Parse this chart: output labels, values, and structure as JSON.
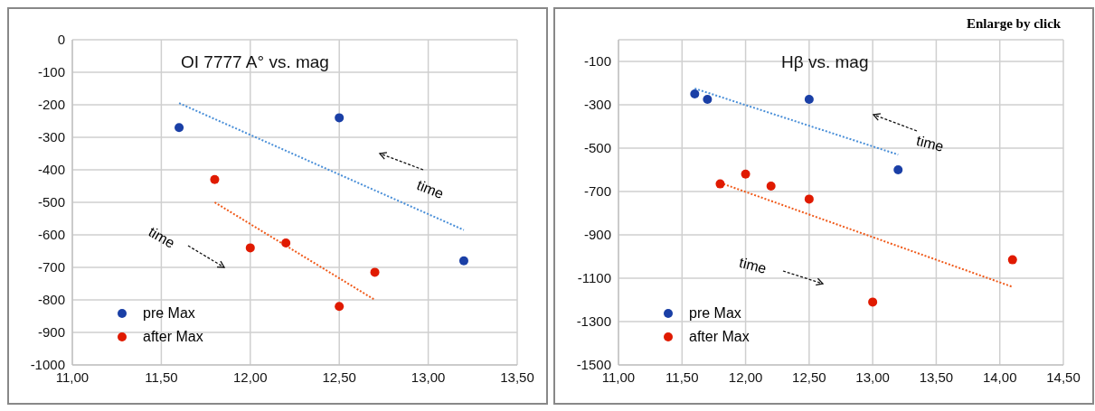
{
  "chart_data": [
    {
      "type": "scatter",
      "title": "OI 7777 A° vs. mag",
      "marker": "circle",
      "grid": true,
      "legend": "bottom left",
      "xlim": [
        11,
        13.5
      ],
      "xticks": [
        {
          "value": 11,
          "label": "11,00"
        },
        {
          "value": 11.5,
          "label": "11,50"
        },
        {
          "value": 12,
          "label": "12,00"
        },
        {
          "value": 12.5,
          "label": "12,50"
        },
        {
          "value": 13,
          "label": "13,00"
        },
        {
          "value": 13.5,
          "label": "13,50"
        }
      ],
      "ylim": [
        -1000,
        0
      ],
      "yticks": [
        -1000,
        -900,
        -800,
        -700,
        -600,
        -500,
        -400,
        -300,
        -200,
        -100,
        0
      ],
      "series": [
        {
          "name": "pre Max",
          "color": "#1a3fa6",
          "x": [
            11.6,
            12.5,
            13.2
          ],
          "values": [
            -270,
            -240,
            -680
          ]
        },
        {
          "name": "after Max",
          "color": "#e01a00",
          "x": [
            11.8,
            12.0,
            12.2,
            12.5,
            12.7
          ],
          "values": [
            -430,
            -640,
            -625,
            -820,
            -715
          ]
        },
        {
          "type": "line",
          "marker": "none",
          "line_style": "dotted",
          "color": "#4a8fd8",
          "x": [
            11.6,
            13.2
          ],
          "values": [
            -195,
            -585
          ]
        },
        {
          "type": "line",
          "marker": "none",
          "line_style": "dotted",
          "color": "#f05a1a",
          "x": [
            11.8,
            12.7
          ],
          "values": [
            -500,
            -800
          ]
        }
      ],
      "annotations": [
        "time",
        "time"
      ]
    },
    {
      "type": "scatter",
      "title": "Hβ vs. mag",
      "marker": "circle",
      "grid": true,
      "legend": "bottom left",
      "xlim": [
        11,
        14.5
      ],
      "xticks": [
        {
          "value": 11,
          "label": "11,00"
        },
        {
          "value": 11.5,
          "label": "11,50"
        },
        {
          "value": 12,
          "label": "12,00"
        },
        {
          "value": 12.5,
          "label": "12,50"
        },
        {
          "value": 13,
          "label": "13,00"
        },
        {
          "value": 13.5,
          "label": "13,50"
        },
        {
          "value": 14,
          "label": "14,00"
        },
        {
          "value": 14.5,
          "label": "14,50"
        }
      ],
      "ylim": [
        -1500,
        0
      ],
      "yticks": [
        -1500,
        -1300,
        -1100,
        -900,
        -700,
        -500,
        -300,
        -100
      ],
      "series": [
        {
          "name": "pre Max",
          "color": "#1a3fa6",
          "x": [
            11.6,
            11.7,
            12.5,
            13.2
          ],
          "values": [
            -250,
            -275,
            -275,
            -600
          ]
        },
        {
          "name": "after Max",
          "color": "#e01a00",
          "x": [
            11.8,
            12.0,
            12.2,
            12.5,
            13.0,
            14.1
          ],
          "values": [
            -665,
            -620,
            -675,
            -735,
            -1210,
            -1015
          ]
        },
        {
          "type": "line",
          "marker": "none",
          "line_style": "dotted",
          "color": "#4a8fd8",
          "x": [
            11.6,
            13.2
          ],
          "values": [
            -225,
            -530
          ]
        },
        {
          "type": "line",
          "marker": "none",
          "line_style": "dotted",
          "color": "#f05a1a",
          "x": [
            11.8,
            14.1
          ],
          "values": [
            -660,
            -1140
          ]
        }
      ],
      "annotations": [
        "time",
        "time",
        "Enlarge by click"
      ]
    }
  ]
}
